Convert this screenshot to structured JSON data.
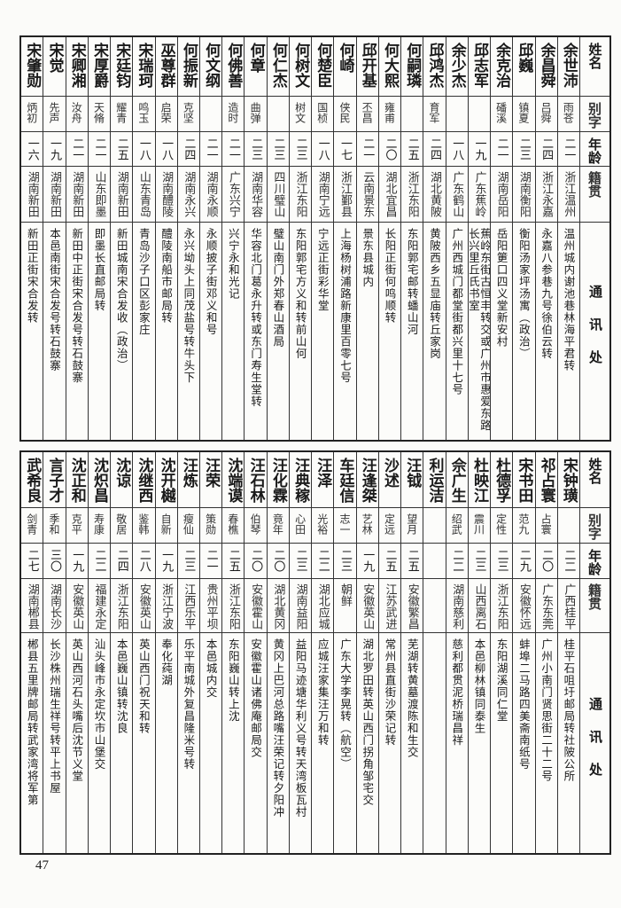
{
  "headers": {
    "name": "姓名",
    "alias": "别字",
    "age": "年龄",
    "origin": "籍贯",
    "address": "通讯处"
  },
  "table_top": [
    {
      "name": "余世沛",
      "alias": "雨苍",
      "age": "二一",
      "origin": "浙江温州",
      "address": "温州城内谢池巷林海平君转"
    },
    {
      "name": "余昌舜",
      "alias": "吕舜",
      "age": "二四",
      "origin": "浙江永嘉",
      "address": "永嘉八参巷九号徐伯云转"
    },
    {
      "name": "邱巍",
      "alias": "镇夏",
      "age": "二三",
      "origin": "湖南衡阳",
      "address": "衡阳汤家坪汤寓（政治）"
    },
    {
      "name": "余克治",
      "alias": "磻溪",
      "age": "二一",
      "origin": "湖南岳阳",
      "address": "岳阳筻口四义堂新安村"
    },
    {
      "name": "邱志军",
      "alias": "",
      "age": "一九",
      "origin": "广东蕉岭",
      "address": "蕉岭东街古恒丰转交或广州市惠爱东路长兴里丘氏书室"
    },
    {
      "name": "余少杰",
      "alias": "",
      "age": "一八",
      "origin": "广东鹤山",
      "address": "广州西城门都堂街都兴里十七号"
    },
    {
      "name": "邱鸿杰",
      "alias": "育军",
      "age": "二四",
      "origin": "湖北黄陂",
      "address": "黄陂西乡五显庙转丘家岗"
    },
    {
      "name": "何嗣璘",
      "alias": "",
      "age": "二五",
      "origin": "浙江东阳",
      "address": "东阳郭宅邮转蟠山河"
    },
    {
      "name": "何大熙",
      "alias": "雍甫",
      "age": "二〇",
      "origin": "湖北宜昌",
      "address": "长阳正街何鸣顺转"
    },
    {
      "name": "邱开基",
      "alias": "丕昌",
      "age": "二一",
      "origin": "云南景东",
      "address": "景东县城内"
    },
    {
      "name": "何崎",
      "alias": "侠民",
      "age": "一七",
      "origin": "浙江鄞县",
      "address": "上海杨树浦路新康里百零七号"
    },
    {
      "name": "何楚臣",
      "alias": "国桢",
      "age": "一八",
      "origin": "湖南宁远",
      "address": "宁远正街彩华堂"
    },
    {
      "name": "何树文",
      "alias": "树文",
      "age": "二三",
      "origin": "浙江东阳",
      "address": "东阳郭宅方义和转前山何"
    },
    {
      "name": "何仁杰",
      "alias": "",
      "age": "二三",
      "origin": "四川璧山",
      "address": "璧山南门外郑春山酒局"
    },
    {
      "name": "何章",
      "alias": "曲弹",
      "age": "二三",
      "origin": "湖南华容",
      "address": "华容北门葛永升转或东门寿生堂转"
    },
    {
      "name": "何佛善",
      "alias": "造时",
      "age": "二一",
      "origin": "广东兴宁",
      "address": "兴宁永和光记"
    },
    {
      "name": "何文纲",
      "alias": "",
      "age": "二一",
      "origin": "湖南永顺",
      "address": "永顺披子街邓义和号"
    },
    {
      "name": "何振新",
      "alias": "克坚",
      "age": "二四",
      "origin": "湖南永兴",
      "address": "永兴坳头上同茂盐号转牛头下"
    },
    {
      "name": "巫尊群",
      "alias": "启荣",
      "age": "一八",
      "origin": "湖南醴陵",
      "address": "醴陵南船市邮局转"
    },
    {
      "name": "宋瑞珂",
      "alias": "鸣玉",
      "age": "一八",
      "origin": "山东青岛",
      "address": "青岛沙子口区彭家庄"
    },
    {
      "name": "宋廷钧",
      "alias": "耀青",
      "age": "二五",
      "origin": "湖南新田",
      "address": "新田城南宋合发收（政治）"
    },
    {
      "name": "宋厚爵",
      "alias": "天脩",
      "age": "二一",
      "origin": "山东即墨",
      "address": "即墨长直邮局转"
    },
    {
      "name": "宋卿湘",
      "alias": "汝舟",
      "age": "二一",
      "origin": "湖南新田",
      "address": "新田中正街宋合发号转石鼓寨"
    },
    {
      "name": "宋觉",
      "alias": "先声",
      "age": "一九",
      "origin": "湖南新田",
      "address": "本邑南街宋合发号转石鼓寨"
    },
    {
      "name": "宋肇勋",
      "alias": "炳初",
      "age": "一六",
      "origin": "湖南新田",
      "address": "新田正街宋合发转"
    }
  ],
  "table_bottom": [
    {
      "name": "宋钟璜",
      "alias": "",
      "age": "二二",
      "origin": "广西桂平",
      "address": "桂平石咀圩邮局转社陂公所"
    },
    {
      "name": "祁占寰",
      "alias": "占寰",
      "age": "二〇",
      "origin": "广东东莞",
      "address": "广州小南门贤思街二十二号"
    },
    {
      "name": "宋书田",
      "alias": "范九",
      "age": "二九",
      "origin": "安徽怀远",
      "address": "蚌埠二马路四美斋南纸号"
    },
    {
      "name": "杜德孚",
      "alias": "定性",
      "age": "二三",
      "origin": "浙江东阳",
      "address": "东阳湖溪同仁堂"
    },
    {
      "name": "杜映江",
      "alias": "震川",
      "age": "二三",
      "origin": "山西离石",
      "address": "本邑柳林镇同泰生"
    },
    {
      "name": "佘广生",
      "alias": "绍武",
      "age": "二二",
      "origin": "湖南慈利",
      "address": "慈利都贯泥桥瑞昌祥"
    },
    {
      "name": "利运洁",
      "alias": "",
      "age": "",
      "origin": "",
      "address": ""
    },
    {
      "name": "汪钺",
      "alias": "望月",
      "age": "二五",
      "origin": "安徽繁昌",
      "address": "芜湖转黄墓渡陈和生交"
    },
    {
      "name": "沙述",
      "alias": "定远",
      "age": "二五",
      "origin": "江苏武进",
      "address": "常州县直街沙荣记转"
    },
    {
      "name": "汪逢桀",
      "alias": "艺林",
      "age": "一九",
      "origin": "安徽英山",
      "address": "湖北罗田转英山西门拐角邹宅交"
    },
    {
      "name": "车廷信",
      "alias": "志一",
      "age": "二三",
      "origin": "朝鲜",
      "address": "广东大学李晃转（航空）"
    },
    {
      "name": "汪泽",
      "alias": "光裕",
      "age": "二二",
      "origin": "湖北应城",
      "address": "应城汪家集汪万和转"
    },
    {
      "name": "汪典稼",
      "alias": "心田",
      "age": "二三",
      "origin": "湖南益阳",
      "address": "益阳马迹塘华利义号转天湾板瓦村"
    },
    {
      "name": "汪化霖",
      "alias": "竟年",
      "age": "二〇",
      "origin": "湖北黄冈",
      "address": "黄冈上巴河总路嘴汪荣记转夕阳冲"
    },
    {
      "name": "汪石林",
      "alias": "伯琴",
      "age": "二〇",
      "origin": "安徽霍山",
      "address": "安徽霍山诸佛庵邮局交"
    },
    {
      "name": "沈端谟",
      "alias": "春樵",
      "age": "二五",
      "origin": "浙江东阳",
      "address": "东阳巍山转上沈"
    },
    {
      "name": "汪荣",
      "alias": "策勋",
      "age": "二一",
      "origin": "贵州平坝",
      "address": "本邑城内交"
    },
    {
      "name": "汪炼",
      "alias": "瘦仙",
      "age": "二三",
      "origin": "江西乐平",
      "address": "乐平南城外复昌隆米号转"
    },
    {
      "name": "沈开樾",
      "alias": "自新",
      "age": "一九",
      "origin": "浙江宁波",
      "address": "奉化莼湖"
    },
    {
      "name": "沈继西",
      "alias": "鉴韩",
      "age": "二八",
      "origin": "安徽英山",
      "address": "英山西门祝天和转"
    },
    {
      "name": "沈谅",
      "alias": "敬居",
      "age": "二四",
      "origin": "浙江东阳",
      "address": "本邑巍山镇转沈良"
    },
    {
      "name": "沈炽昌",
      "alias": "寿康",
      "age": "二二",
      "origin": "福建永定",
      "address": "汕头峰市永定坎市山堡交"
    },
    {
      "name": "沈正和",
      "alias": "克平",
      "age": "一九",
      "origin": "安徽英山",
      "address": "英山西河石头嘴后沈节义堂"
    },
    {
      "name": "言子才",
      "alias": "季和",
      "age": "三〇",
      "origin": "湖南长沙",
      "address": "长沙株州瑞生祥号转平上书屋"
    },
    {
      "name": "武希良",
      "alias": "剑青",
      "age": "二七",
      "origin": "湖南郴县",
      "address": "郴县五里牌邮局转武家湾将军第"
    }
  ],
  "page_number": "47"
}
